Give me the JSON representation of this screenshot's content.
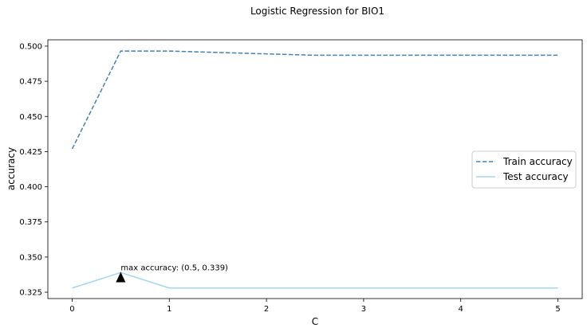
{
  "chart_data": {
    "type": "line",
    "title": "Logistic Regression for BIO1",
    "xlabel": "C",
    "ylabel": "accuracy",
    "xlim": [
      -0.25,
      5.25
    ],
    "ylim": [
      0.3205,
      0.5045
    ],
    "xticks": [
      0,
      1,
      2,
      3,
      4,
      5
    ],
    "xtick_labels": [
      "0",
      "1",
      "2",
      "3",
      "4",
      "5"
    ],
    "yticks": [
      0.325,
      0.35,
      0.375,
      0.4,
      0.425,
      0.45,
      0.475,
      0.5
    ],
    "ytick_labels": [
      "0.325",
      "0.350",
      "0.375",
      "0.400",
      "0.425",
      "0.450",
      "0.475",
      "0.500"
    ],
    "grid": false,
    "legend_position": "center-right",
    "x": [
      0.001,
      0.5,
      1,
      2.5,
      5
    ],
    "series": [
      {
        "name": "Train accuracy",
        "values": [
          0.427,
          0.4965,
          0.4965,
          0.4935,
          0.4935
        ],
        "color": "#4682b4",
        "style": "dashed"
      },
      {
        "name": "Test accuracy",
        "values": [
          0.328,
          0.339,
          0.328,
          0.328,
          0.328
        ],
        "color": "#a6d6ec",
        "style": "solid"
      }
    ],
    "annotations": [
      {
        "text": "max accuracy: (0.5, 0.339)",
        "x": 0.5,
        "y": 0.339,
        "marker_y": 0.3355,
        "marker": "black-triangle"
      }
    ]
  }
}
